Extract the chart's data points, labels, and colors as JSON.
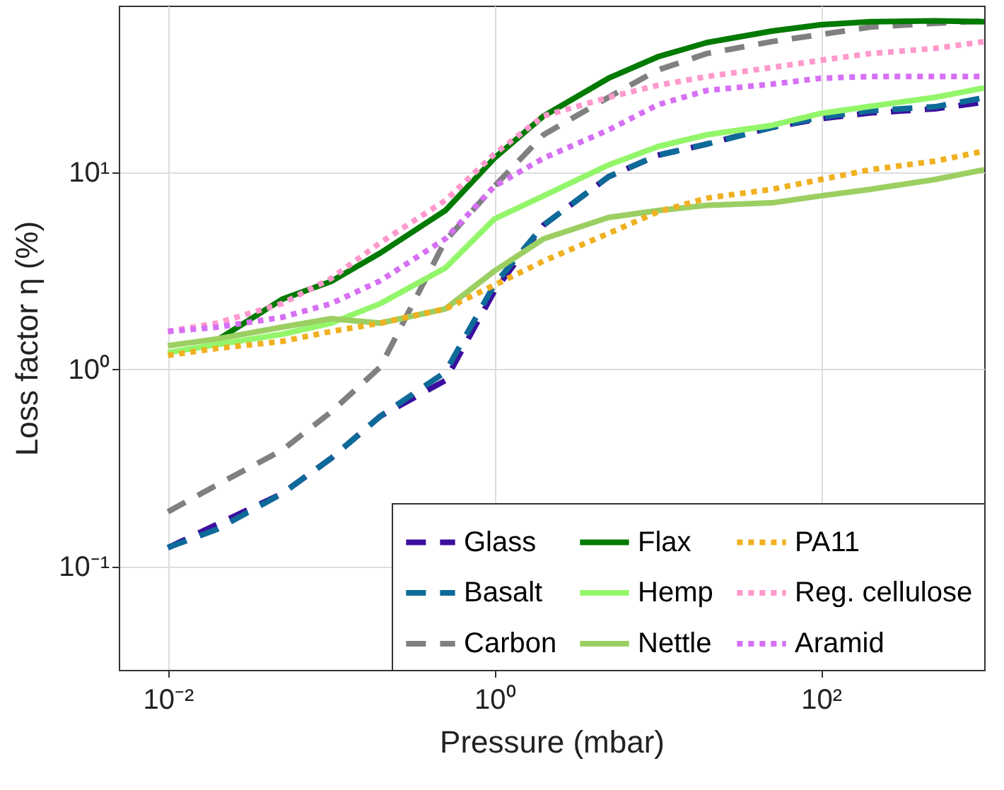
{
  "chart_data": {
    "type": "line",
    "xlabel": "Pressure (mbar)",
    "ylabel": "Loss factor η (%)",
    "log": "xy",
    "grid": true,
    "legend": "bottom right",
    "xlim": [
      0.005,
      1000
    ],
    "ylim": [
      0.03,
      70
    ],
    "xticks": [
      {
        "value": 0.01,
        "label": "10⁻²"
      },
      {
        "value": 1,
        "label": "10⁰"
      },
      {
        "value": 100,
        "label": "10²"
      }
    ],
    "yticks": [
      {
        "value": 0.1,
        "label": "10⁻¹"
      },
      {
        "value": 1,
        "label": "10⁰"
      },
      {
        "value": 10,
        "label": "10¹"
      }
    ],
    "x": [
      0.01,
      0.02,
      0.05,
      0.1,
      0.2,
      0.5,
      1,
      2,
      5,
      10,
      20,
      50,
      100,
      200,
      500,
      1000
    ],
    "series": [
      {
        "name": "Glass",
        "color": "#3b0f9e",
        "line_style": "dashed",
        "values": [
          0.125,
          0.164,
          0.235,
          0.355,
          0.58,
          0.88,
          2.5,
          5.4,
          9.5,
          12.2,
          13.9,
          16.9,
          18.7,
          20,
          21,
          22.7
        ]
      },
      {
        "name": "Basalt",
        "color": "#0e6a98",
        "line_style": "dashed",
        "values": [
          0.125,
          0.155,
          0.235,
          0.355,
          0.58,
          0.97,
          2.7,
          5.4,
          9.5,
          12.2,
          13.9,
          16.9,
          19,
          20.5,
          21.5,
          23.9
        ]
      },
      {
        "name": "Carbon",
        "color": "#808080",
        "line_style": "dashed",
        "values": [
          0.19,
          0.26,
          0.39,
          0.61,
          1.03,
          4.5,
          8.5,
          15.5,
          24,
          33,
          40,
          46,
          50,
          54.5,
          57,
          58.5
        ]
      },
      {
        "name": "Flax",
        "color": "#007a00",
        "line_style": "solid",
        "values": [
          null,
          1.41,
          2.27,
          2.8,
          3.9,
          6.4,
          11.8,
          19.3,
          30,
          38.5,
          45.5,
          52,
          56,
          58,
          58.6,
          58
        ]
      },
      {
        "name": "Hemp",
        "color": "#93f66a",
        "line_style": "solid",
        "values": [
          1.22,
          1.34,
          1.51,
          1.72,
          2.16,
          3.27,
          5.8,
          7.6,
          10.9,
          13.5,
          15.5,
          17.3,
          19.9,
          21.6,
          24,
          26.8
        ]
      },
      {
        "name": "Nettle",
        "color": "#9ccf62",
        "line_style": "solid",
        "values": [
          1.32,
          1.43,
          1.64,
          1.81,
          1.72,
          2.03,
          3.16,
          4.6,
          5.9,
          6.4,
          6.8,
          7,
          7.6,
          8.2,
          9.2,
          10.3
        ]
      },
      {
        "name": "PA11",
        "color": "#f0b020",
        "line_style": "dotted",
        "values": [
          1.18,
          1.28,
          1.39,
          1.56,
          1.72,
          2.03,
          2.68,
          3.55,
          4.9,
          6.3,
          7.4,
          8.2,
          9.2,
          10.3,
          11.4,
          12.8
        ]
      },
      {
        "name": "Reg. cellulose",
        "color": "#ff99cc",
        "line_style": "dotted",
        "values": [
          1.56,
          1.72,
          2.16,
          2.9,
          4.4,
          7.2,
          12.4,
          19.3,
          24,
          27.6,
          30.6,
          34,
          37,
          40,
          42.5,
          46
        ]
      },
      {
        "name": "Aramid",
        "color": "#d670f5",
        "line_style": "dotted",
        "values": [
          1.56,
          1.64,
          1.84,
          2.16,
          2.82,
          4.6,
          8.5,
          11.8,
          16.4,
          22,
          26,
          28,
          30,
          30.6,
          30.6,
          30.6
        ]
      }
    ]
  }
}
